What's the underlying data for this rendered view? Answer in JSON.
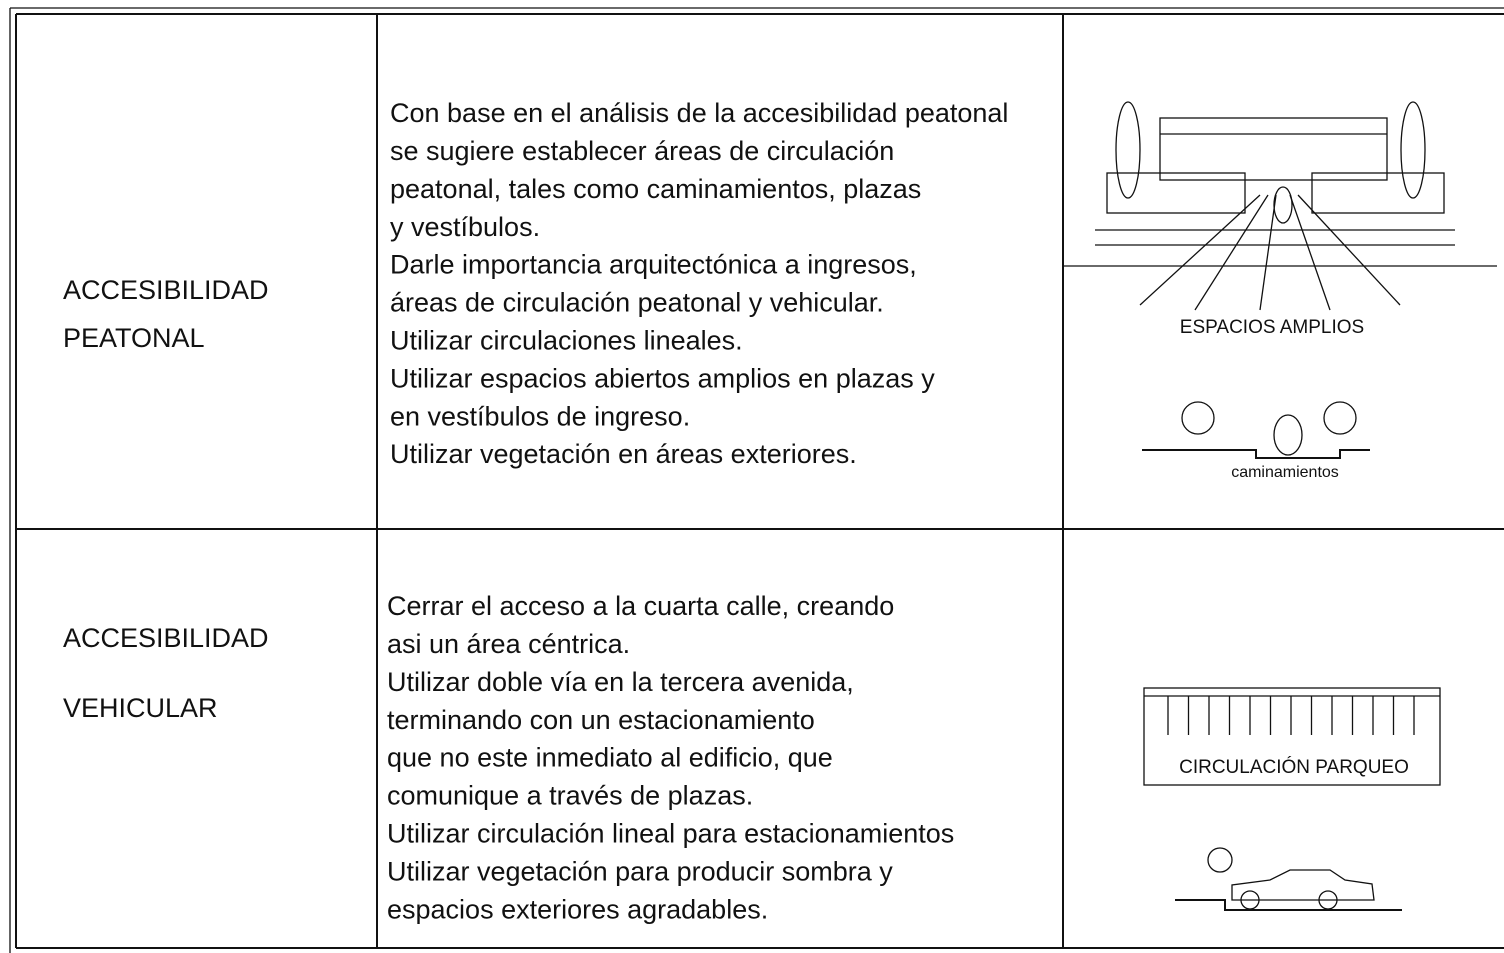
{
  "rows": [
    {
      "label": [
        "ACCESIBILIDAD",
        "PEATONAL"
      ],
      "text": [
        "Con base en el análisis de la accesibilidad peatonal",
        "se sugiere establecer áreas de circulación",
        "peatonal, tales como caminamientos, plazas",
        "y vestíbulos.",
        "Darle importancia arquitectónica a ingresos,",
        "áreas de circulación peatonal y vehicular.",
        "Utilizar circulaciones lineales.",
        "Utilizar espacios abiertos amplios en plazas y",
        "en vestíbulos de ingreso.",
        "Utilizar vegetación en áreas exteriores."
      ],
      "captions": [
        "ESPACIOS AMPLIOS",
        "caminamientos"
      ]
    },
    {
      "label": [
        "ACCESIBILIDAD",
        "VEHICULAR"
      ],
      "text": [
        "Cerrar el acceso a la cuarta calle, creando",
        "asi un área céntrica.",
        "Utilizar doble vía en la tercera avenida,",
        "terminando con un estacionamiento",
        "que no este inmediato al edificio, que",
        "comunique a través de plazas.",
        "Utilizar circulación lineal para estacionamientos",
        "Utilizar vegetación para producir sombra y",
        "espacios exteriores agradables."
      ],
      "captions": [
        "CIRCULACIÓN PARQUEO"
      ]
    }
  ]
}
